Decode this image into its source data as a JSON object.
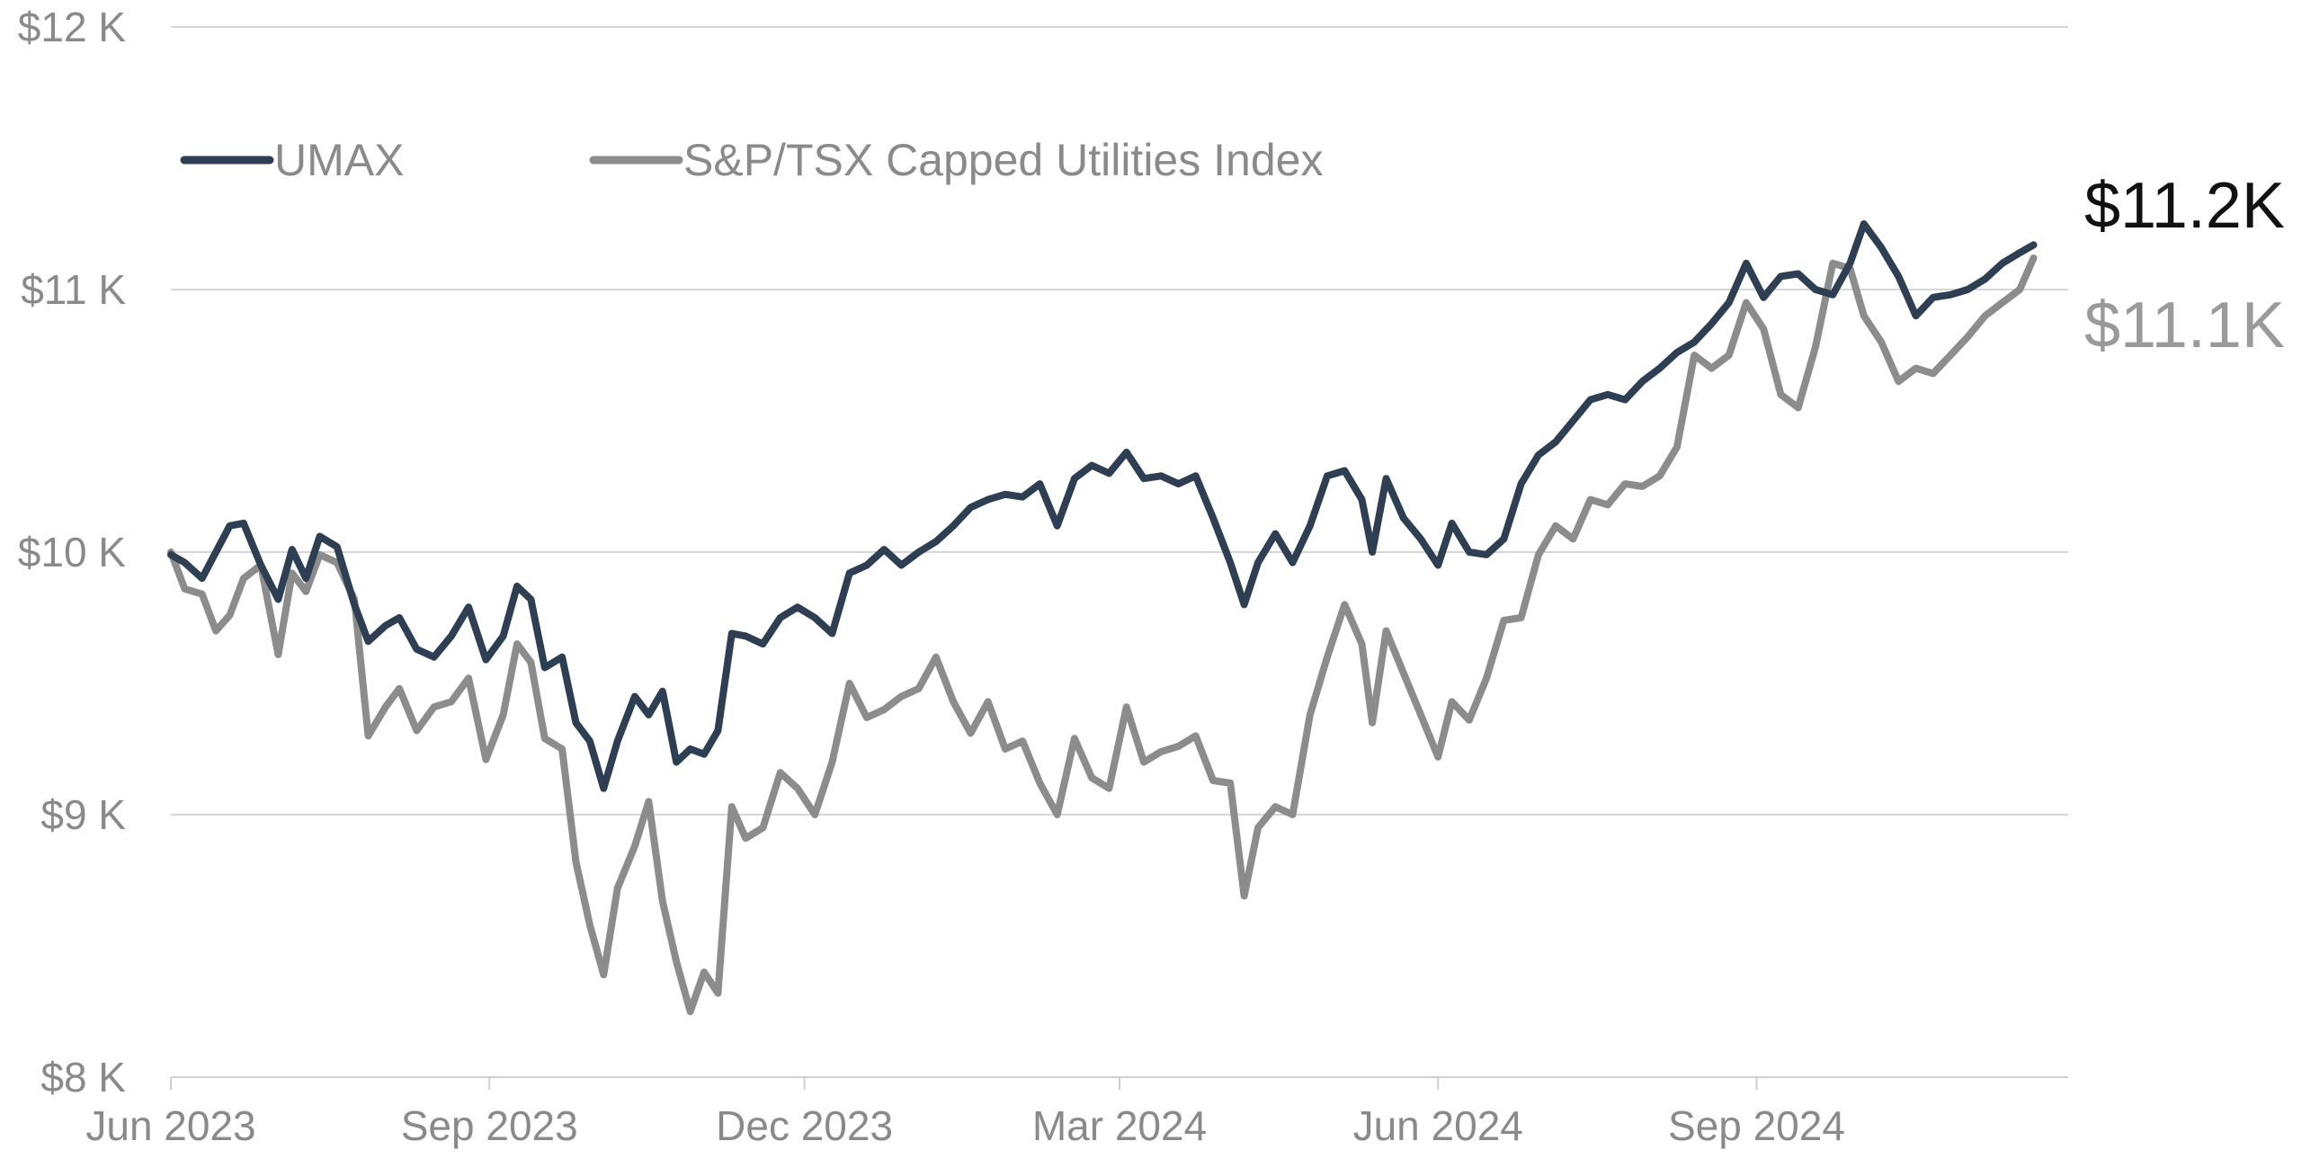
{
  "chart_data": {
    "type": "line",
    "x_range": [
      "2023-06-01",
      "2024-11-30"
    ],
    "ylim": [
      8000,
      12000
    ],
    "grid": true,
    "legend_position": "top-left",
    "y_ticks": [
      {
        "value": 12000,
        "label": "$12 K"
      },
      {
        "value": 11000,
        "label": "$11 K"
      },
      {
        "value": 10000,
        "label": "$10 K"
      },
      {
        "value": 9000,
        "label": "$9 K"
      },
      {
        "value": 8000,
        "label": "$8 K"
      }
    ],
    "x_ticks": [
      {
        "date": "2023-06-01",
        "label": "Jun 2023"
      },
      {
        "date": "2023-09-01",
        "label": "Sep 2023"
      },
      {
        "date": "2023-12-01",
        "label": "Dec 2023"
      },
      {
        "date": "2024-03-01",
        "label": "Mar 2024"
      },
      {
        "date": "2024-06-01",
        "label": "Jun 2024"
      },
      {
        "date": "2024-09-01",
        "label": "Sep 2024"
      }
    ],
    "series": [
      {
        "name": "UMAX",
        "color": "#2e3f54",
        "end_label": "$11.2K",
        "end_label_color": "#111111",
        "points": [
          [
            "2023-06-01",
            9990
          ],
          [
            "2023-06-05",
            9960
          ],
          [
            "2023-06-10",
            9900
          ],
          [
            "2023-06-14",
            10000
          ],
          [
            "2023-06-18",
            10100
          ],
          [
            "2023-06-22",
            10110
          ],
          [
            "2023-06-27",
            9950
          ],
          [
            "2023-07-02",
            9820
          ],
          [
            "2023-07-06",
            10010
          ],
          [
            "2023-07-10",
            9900
          ],
          [
            "2023-07-14",
            10060
          ],
          [
            "2023-07-19",
            10020
          ],
          [
            "2023-07-24",
            9800
          ],
          [
            "2023-07-28",
            9660
          ],
          [
            "2023-08-02",
            9720
          ],
          [
            "2023-08-06",
            9750
          ],
          [
            "2023-08-11",
            9630
          ],
          [
            "2023-08-16",
            9600
          ],
          [
            "2023-08-21",
            9680
          ],
          [
            "2023-08-26",
            9790
          ],
          [
            "2023-08-31",
            9590
          ],
          [
            "2023-09-05",
            9680
          ],
          [
            "2023-09-09",
            9870
          ],
          [
            "2023-09-13",
            9820
          ],
          [
            "2023-09-17",
            9560
          ],
          [
            "2023-09-22",
            9600
          ],
          [
            "2023-09-26",
            9350
          ],
          [
            "2023-09-30",
            9280
          ],
          [
            "2023-10-04",
            9100
          ],
          [
            "2023-10-08",
            9280
          ],
          [
            "2023-10-13",
            9450
          ],
          [
            "2023-10-17",
            9380
          ],
          [
            "2023-10-21",
            9470
          ],
          [
            "2023-10-25",
            9200
          ],
          [
            "2023-10-29",
            9250
          ],
          [
            "2023-11-02",
            9230
          ],
          [
            "2023-11-06",
            9320
          ],
          [
            "2023-11-10",
            9690
          ],
          [
            "2023-11-14",
            9680
          ],
          [
            "2023-11-19",
            9650
          ],
          [
            "2023-11-24",
            9750
          ],
          [
            "2023-11-29",
            9790
          ],
          [
            "2023-12-04",
            9750
          ],
          [
            "2023-12-09",
            9690
          ],
          [
            "2023-12-14",
            9920
          ],
          [
            "2023-12-19",
            9950
          ],
          [
            "2023-12-24",
            10010
          ],
          [
            "2023-12-29",
            9950
          ],
          [
            "2024-01-03",
            10000
          ],
          [
            "2024-01-08",
            10040
          ],
          [
            "2024-01-13",
            10100
          ],
          [
            "2024-01-18",
            10170
          ],
          [
            "2024-01-23",
            10200
          ],
          [
            "2024-01-28",
            10220
          ],
          [
            "2024-02-02",
            10210
          ],
          [
            "2024-02-07",
            10260
          ],
          [
            "2024-02-12",
            10100
          ],
          [
            "2024-02-17",
            10280
          ],
          [
            "2024-02-22",
            10330
          ],
          [
            "2024-02-27",
            10300
          ],
          [
            "2024-03-03",
            10380
          ],
          [
            "2024-03-08",
            10280
          ],
          [
            "2024-03-13",
            10290
          ],
          [
            "2024-03-18",
            10260
          ],
          [
            "2024-03-23",
            10290
          ],
          [
            "2024-03-28",
            10130
          ],
          [
            "2024-04-02",
            9960
          ],
          [
            "2024-04-06",
            9800
          ],
          [
            "2024-04-10",
            9960
          ],
          [
            "2024-04-15",
            10070
          ],
          [
            "2024-04-20",
            9960
          ],
          [
            "2024-04-25",
            10100
          ],
          [
            "2024-04-30",
            10290
          ],
          [
            "2024-05-05",
            10310
          ],
          [
            "2024-05-10",
            10200
          ],
          [
            "2024-05-13",
            10000
          ],
          [
            "2024-05-17",
            10280
          ],
          [
            "2024-05-22",
            10130
          ],
          [
            "2024-05-27",
            10050
          ],
          [
            "2024-06-01",
            9950
          ],
          [
            "2024-06-05",
            10110
          ],
          [
            "2024-06-10",
            10000
          ],
          [
            "2024-06-15",
            9990
          ],
          [
            "2024-06-20",
            10050
          ],
          [
            "2024-06-25",
            10260
          ],
          [
            "2024-06-30",
            10370
          ],
          [
            "2024-07-05",
            10420
          ],
          [
            "2024-07-10",
            10500
          ],
          [
            "2024-07-15",
            10580
          ],
          [
            "2024-07-20",
            10600
          ],
          [
            "2024-07-25",
            10580
          ],
          [
            "2024-07-30",
            10650
          ],
          [
            "2024-08-04",
            10700
          ],
          [
            "2024-08-09",
            10760
          ],
          [
            "2024-08-14",
            10800
          ],
          [
            "2024-08-19",
            10870
          ],
          [
            "2024-08-24",
            10950
          ],
          [
            "2024-08-29",
            11100
          ],
          [
            "2024-09-03",
            10970
          ],
          [
            "2024-09-08",
            11050
          ],
          [
            "2024-09-13",
            11060
          ],
          [
            "2024-09-18",
            11000
          ],
          [
            "2024-09-23",
            10980
          ],
          [
            "2024-09-28",
            11100
          ],
          [
            "2024-10-02",
            11250
          ],
          [
            "2024-10-07",
            11160
          ],
          [
            "2024-10-12",
            11050
          ],
          [
            "2024-10-17",
            10900
          ],
          [
            "2024-10-22",
            10970
          ],
          [
            "2024-10-27",
            10980
          ],
          [
            "2024-11-01",
            11000
          ],
          [
            "2024-11-06",
            11040
          ],
          [
            "2024-11-11",
            11100
          ],
          [
            "2024-11-16",
            11140
          ],
          [
            "2024-11-20",
            11170
          ]
        ]
      },
      {
        "name": "S&P/TSX Capped Utilities Index",
        "color": "#8c8c8c",
        "end_label": "$11.1K",
        "end_label_color": "#9a9a9a",
        "points": [
          [
            "2023-06-01",
            10000
          ],
          [
            "2023-06-05",
            9860
          ],
          [
            "2023-06-10",
            9840
          ],
          [
            "2023-06-14",
            9700
          ],
          [
            "2023-06-18",
            9760
          ],
          [
            "2023-06-22",
            9900
          ],
          [
            "2023-06-27",
            9950
          ],
          [
            "2023-07-02",
            9610
          ],
          [
            "2023-07-06",
            9920
          ],
          [
            "2023-07-10",
            9850
          ],
          [
            "2023-07-14",
            9990
          ],
          [
            "2023-07-19",
            9960
          ],
          [
            "2023-07-24",
            9820
          ],
          [
            "2023-07-28",
            9300
          ],
          [
            "2023-08-02",
            9410
          ],
          [
            "2023-08-06",
            9480
          ],
          [
            "2023-08-11",
            9320
          ],
          [
            "2023-08-16",
            9410
          ],
          [
            "2023-08-21",
            9430
          ],
          [
            "2023-08-26",
            9520
          ],
          [
            "2023-08-31",
            9210
          ],
          [
            "2023-09-05",
            9380
          ],
          [
            "2023-09-09",
            9650
          ],
          [
            "2023-09-13",
            9580
          ],
          [
            "2023-09-17",
            9290
          ],
          [
            "2023-09-22",
            9250
          ],
          [
            "2023-09-26",
            8820
          ],
          [
            "2023-09-30",
            8580
          ],
          [
            "2023-10-04",
            8390
          ],
          [
            "2023-10-08",
            8720
          ],
          [
            "2023-10-13",
            8880
          ],
          [
            "2023-10-17",
            9050
          ],
          [
            "2023-10-21",
            8670
          ],
          [
            "2023-10-25",
            8440
          ],
          [
            "2023-10-29",
            8250
          ],
          [
            "2023-11-02",
            8400
          ],
          [
            "2023-11-06",
            8320
          ],
          [
            "2023-11-10",
            9030
          ],
          [
            "2023-11-14",
            8910
          ],
          [
            "2023-11-19",
            8950
          ],
          [
            "2023-11-24",
            9160
          ],
          [
            "2023-11-29",
            9100
          ],
          [
            "2023-12-04",
            9000
          ],
          [
            "2023-12-09",
            9200
          ],
          [
            "2023-12-14",
            9500
          ],
          [
            "2023-12-19",
            9370
          ],
          [
            "2023-12-24",
            9400
          ],
          [
            "2023-12-29",
            9450
          ],
          [
            "2024-01-03",
            9480
          ],
          [
            "2024-01-08",
            9600
          ],
          [
            "2024-01-13",
            9430
          ],
          [
            "2024-01-18",
            9310
          ],
          [
            "2024-01-23",
            9430
          ],
          [
            "2024-01-28",
            9250
          ],
          [
            "2024-02-02",
            9280
          ],
          [
            "2024-02-07",
            9120
          ],
          [
            "2024-02-12",
            9000
          ],
          [
            "2024-02-17",
            9290
          ],
          [
            "2024-02-22",
            9140
          ],
          [
            "2024-02-27",
            9100
          ],
          [
            "2024-03-03",
            9410
          ],
          [
            "2024-03-08",
            9200
          ],
          [
            "2024-03-13",
            9240
          ],
          [
            "2024-03-18",
            9260
          ],
          [
            "2024-03-23",
            9300
          ],
          [
            "2024-03-28",
            9130
          ],
          [
            "2024-04-02",
            9120
          ],
          [
            "2024-04-06",
            8690
          ],
          [
            "2024-04-10",
            8950
          ],
          [
            "2024-04-15",
            9030
          ],
          [
            "2024-04-20",
            9000
          ],
          [
            "2024-04-25",
            9380
          ],
          [
            "2024-04-30",
            9600
          ],
          [
            "2024-05-05",
            9800
          ],
          [
            "2024-05-10",
            9650
          ],
          [
            "2024-05-13",
            9350
          ],
          [
            "2024-05-17",
            9700
          ],
          [
            "2024-05-22",
            9540
          ],
          [
            "2024-05-27",
            9380
          ],
          [
            "2024-06-01",
            9220
          ],
          [
            "2024-06-05",
            9430
          ],
          [
            "2024-06-10",
            9360
          ],
          [
            "2024-06-15",
            9520
          ],
          [
            "2024-06-20",
            9740
          ],
          [
            "2024-06-25",
            9750
          ],
          [
            "2024-06-30",
            9990
          ],
          [
            "2024-07-05",
            10100
          ],
          [
            "2024-07-10",
            10050
          ],
          [
            "2024-07-15",
            10200
          ],
          [
            "2024-07-20",
            10180
          ],
          [
            "2024-07-25",
            10260
          ],
          [
            "2024-07-30",
            10250
          ],
          [
            "2024-08-04",
            10290
          ],
          [
            "2024-08-09",
            10400
          ],
          [
            "2024-08-14",
            10750
          ],
          [
            "2024-08-19",
            10700
          ],
          [
            "2024-08-24",
            10750
          ],
          [
            "2024-08-29",
            10950
          ],
          [
            "2024-09-03",
            10850
          ],
          [
            "2024-09-08",
            10600
          ],
          [
            "2024-09-13",
            10550
          ],
          [
            "2024-09-18",
            10780
          ],
          [
            "2024-09-23",
            11100
          ],
          [
            "2024-09-28",
            11080
          ],
          [
            "2024-10-02",
            10900
          ],
          [
            "2024-10-07",
            10800
          ],
          [
            "2024-10-12",
            10650
          ],
          [
            "2024-10-17",
            10700
          ],
          [
            "2024-10-22",
            10680
          ],
          [
            "2024-10-27",
            10750
          ],
          [
            "2024-11-01",
            10820
          ],
          [
            "2024-11-06",
            10900
          ],
          [
            "2024-11-11",
            10950
          ],
          [
            "2024-11-16",
            11000
          ],
          [
            "2024-11-20",
            11120
          ]
        ]
      }
    ]
  }
}
